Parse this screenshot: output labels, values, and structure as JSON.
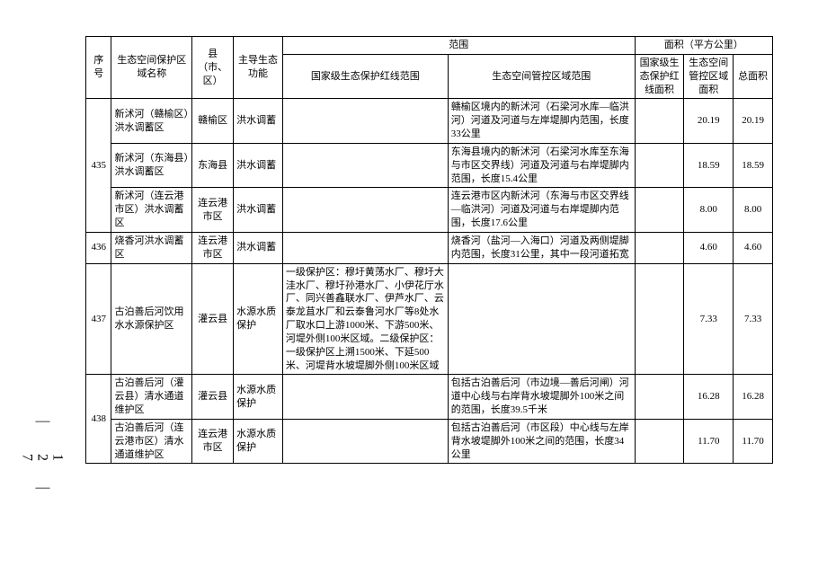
{
  "page_number": "127",
  "columns": {
    "seq": "序号",
    "name": "生态空间保护区域名称",
    "district": "县（市、区）",
    "function": "主导生态功能",
    "scope": "范围",
    "scope_national": "国家级生态保护红线范围",
    "scope_control": "生态空间管控区域范围",
    "area": "面积（平方公里）",
    "area_national": "国家级生态保护红线面积",
    "area_control": "生态空间管控区域面积",
    "area_total": "总面积"
  },
  "col_widths": {
    "seq": 26,
    "name": 82,
    "district": 42,
    "function": 50,
    "scope_national": 168,
    "scope_control": 190,
    "area_national": 50,
    "area_control": 50,
    "area_total": 40
  },
  "rows": [
    {
      "seq": "",
      "name": "新沭河（赣榆区）洪水调蓄区",
      "district": "赣榆区",
      "func": "洪水调蓄",
      "national": "",
      "control": "赣榆区境内的新沭河（石梁河水库—临洪河）河道及河道与左岸堤脚内范围，长度33公里",
      "a1": "",
      "a2": "20.19",
      "a3": "20.19"
    },
    {
      "seq": "435",
      "name": "新沭河（东海县）洪水调蓄区",
      "district": "东海县",
      "func": "洪水调蓄",
      "national": "",
      "control": "东海县境内的新沭河（石梁河水库至东海与市区交界线）河道及河道与右岸堤脚内范围，长度15.4公里",
      "a1": "",
      "a2": "18.59",
      "a3": "18.59"
    },
    {
      "seq": "",
      "name": "新沭河（连云港市区）洪水调蓄区",
      "district": "连云港市区",
      "func": "洪水调蓄",
      "national": "",
      "control": "连云港市区内新沭河（东海与市区交界线—临洪河）河道及河道与右岸堤脚内范围，长度17.6公里",
      "a1": "",
      "a2": "8.00",
      "a3": "8.00"
    },
    {
      "seq": "436",
      "name": "烧香河洪水调蓄区",
      "district": "连云港市区",
      "func": "洪水调蓄",
      "national": "",
      "control": "烧香河（盐河—入海口）河道及两侧堤脚内范围，长度31公里，其中一段河道拓宽",
      "a1": "",
      "a2": "4.60",
      "a3": "4.60"
    },
    {
      "seq": "437",
      "name": "古泊善后河饮用水水源保护区",
      "district": "灌云县",
      "func": "水源水质保护",
      "national": "一级保护区：穆圩黄荡水厂、穆圩大洼水厂、穆圩孙港水厂、小伊花厅水厂、同兴善鑫联水厂、伊芦水厂、云泰龙苴水厂和云泰鲁河水厂等8处水厂取水口上游1000米、下游500米、河堤外侧100米区域。二级保护区：一级保护区上溯1500米、下延500米、河堤背水坡堤脚外侧100米区域",
      "control": "",
      "a1": "",
      "a2": "7.33",
      "a3": "7.33"
    },
    {
      "seq": "",
      "name": "古泊善后河（灌云县）清水通道维护区",
      "district": "灌云县",
      "func": "水源水质保护",
      "national": "",
      "control": "包括古泊善后河（市边境—善后河闸）河道中心线与右岸背水坡堤脚外100米之间的范围，长度39.5千米",
      "a1": "",
      "a2": "16.28",
      "a3": "16.28"
    },
    {
      "seq": "438",
      "name": "古泊善后河（连云港市区）清水通道维护区",
      "district": "连云港市区",
      "func": "水源水质保护",
      "national": "",
      "control": "包括古泊善后河（市区段）中心线与左岸背水坡堤脚外100米之间的范围，长度34公里",
      "a1": "",
      "a2": "11.70",
      "a3": "11.70"
    }
  ],
  "rowspans": {
    "435": 3,
    "438": 2
  }
}
